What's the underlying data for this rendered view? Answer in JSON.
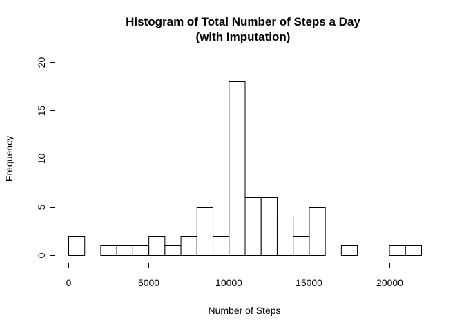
{
  "chart_data": {
    "type": "bar",
    "title": "Histogram of Total Number of Steps a Day",
    "subtitle": "(with Imputation)",
    "xlabel": "Number of Steps",
    "ylabel": "Frequency",
    "bin_width": 1000,
    "bin_starts": [
      0,
      1000,
      2000,
      3000,
      4000,
      5000,
      6000,
      7000,
      8000,
      9000,
      10000,
      11000,
      12000,
      13000,
      14000,
      15000,
      16000,
      17000,
      18000,
      19000,
      20000,
      21000
    ],
    "values": [
      2,
      0,
      1,
      1,
      1,
      2,
      1,
      2,
      5,
      2,
      18,
      6,
      6,
      4,
      2,
      5,
      0,
      1,
      0,
      0,
      1,
      1
    ],
    "xlim": [
      0,
      22000
    ],
    "ylim": [
      0,
      20
    ],
    "xticks": [
      0,
      5000,
      10000,
      15000,
      20000
    ],
    "xtick_labels": [
      "0",
      "5000",
      "10000",
      "15000",
      "20000"
    ],
    "yticks": [
      0,
      5,
      10,
      15,
      20
    ],
    "ytick_labels": [
      "0",
      "5",
      "10",
      "15",
      "20"
    ],
    "colors": {
      "bar_fill": "#ffffff",
      "bar_stroke": "#000000",
      "axis": "#000000",
      "text": "#000000"
    }
  }
}
